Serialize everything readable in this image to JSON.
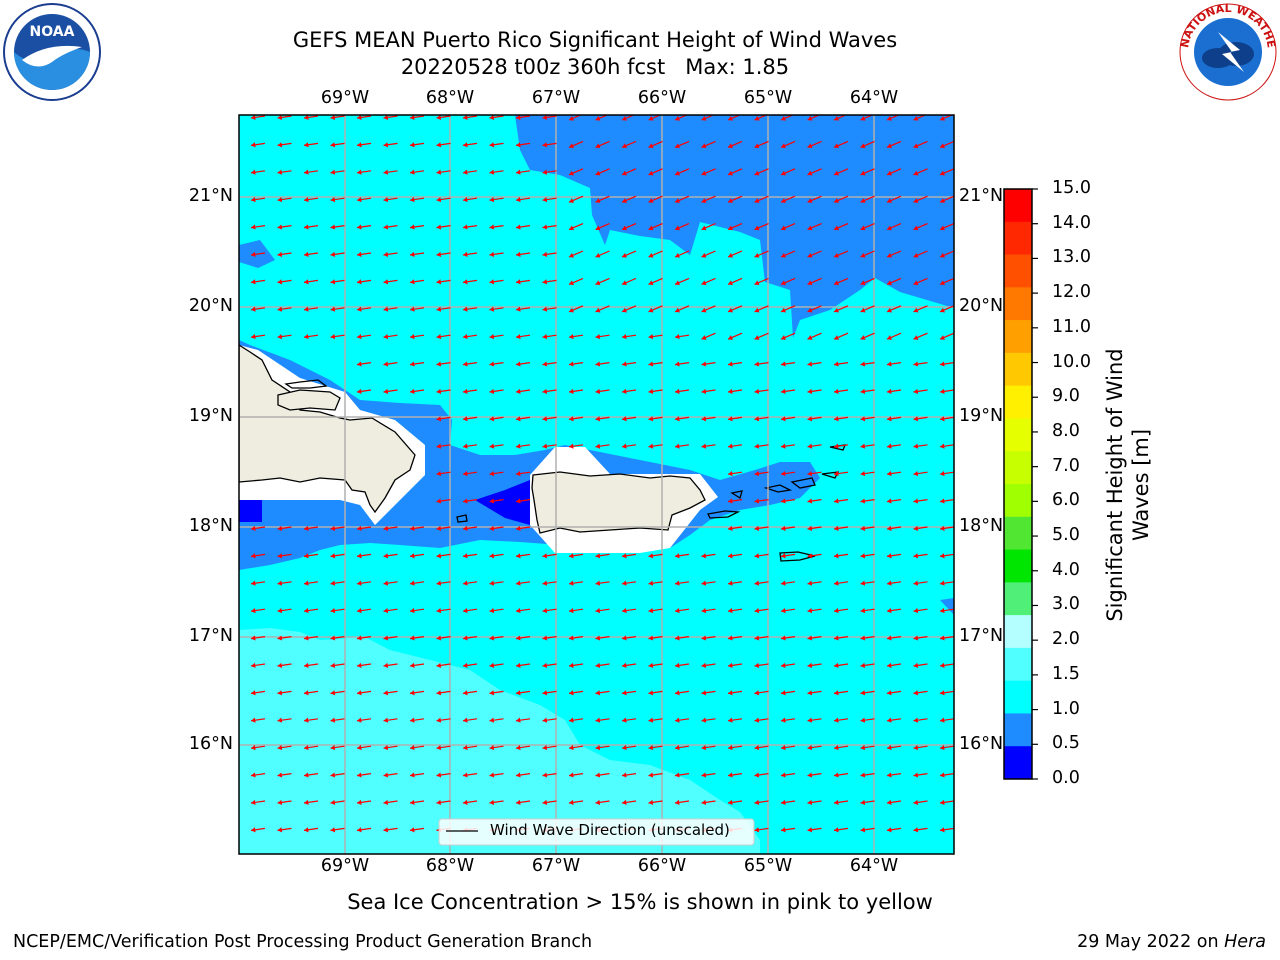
{
  "title": {
    "line1": "GEFS MEAN Puerto Rico Significant Height of Wind Waves",
    "line2": "20220528 t00z 360h fcst   Max: 1.85"
  },
  "map": {
    "lon_labels": [
      "69°W",
      "68°W",
      "67°W",
      "66°W",
      "65°W",
      "64°W"
    ],
    "lat_labels": [
      "21°N",
      "20°N",
      "19°N",
      "18°N",
      "17°N",
      "16°N"
    ],
    "legend_label": "Wind Wave Direction (unscaled)",
    "extent": {
      "lon_min": -69.99,
      "lon_max": -63.25,
      "lat_min": 15.0,
      "lat_max": 21.75
    },
    "land_color": "#eeeddf",
    "arrow_color": "#ff0000",
    "wave_direction": "westward (from east-northeast)"
  },
  "colorbar": {
    "title": "Significant Height of Wind Waves [m]",
    "title_line1": "Significant Height of Wind",
    "title_line2": "Waves [m]",
    "ticks": [
      "15.0",
      "14.0",
      "13.0",
      "12.0",
      "11.0",
      "10.0",
      "9.0",
      "8.0",
      "7.0",
      "6.0",
      "5.0",
      "4.0",
      "3.0",
      "2.0",
      "1.5",
      "1.0",
      "0.5",
      "0.0"
    ],
    "colors_top_to_bottom": [
      "#ff0000",
      "#ff2800",
      "#ff5000",
      "#ff7800",
      "#ffa000",
      "#ffc800",
      "#fff000",
      "#e6ff00",
      "#c8ff00",
      "#a0ff00",
      "#50e632",
      "#00e600",
      "#50f078",
      "#b4ffff",
      "#50ffff",
      "#00ffff",
      "#1e8cff",
      "#0000ff"
    ]
  },
  "note": "Sea Ice Concentration > 15% is shown in pink to yellow",
  "footer": {
    "left": "NCEP/EMC/Verification Post Processing Product Generation Branch",
    "right_prefix": "29 May 2022 on ",
    "right_host": "Hera"
  },
  "logos": {
    "left": "noaa-logo",
    "right": "nws-logo"
  }
}
